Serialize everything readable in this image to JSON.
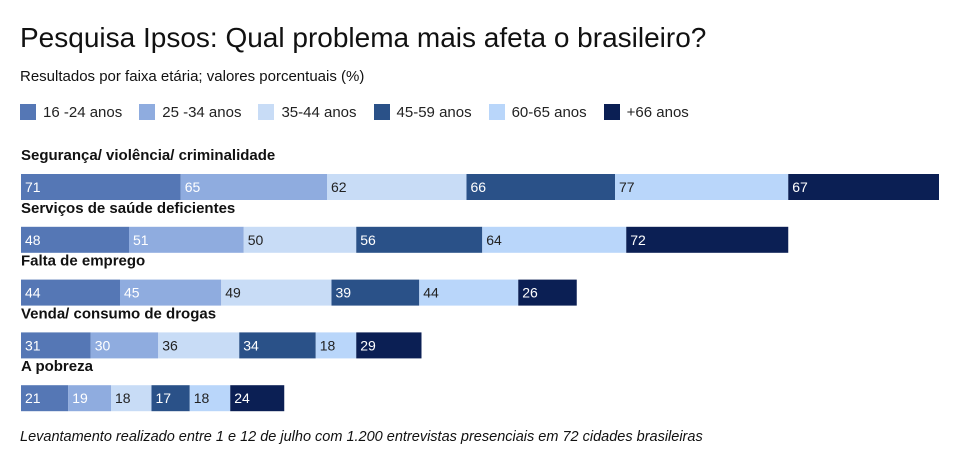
{
  "title": "Pesquisa Ipsos: Qual problema mais afeta o brasileiro?",
  "subtitle": "Resultados por faixa etária; valores porcentuais (%)",
  "footnote": "Levantamento realizado entre 1 e 12 de julho com 1.200 entrevistas presenciais em 72 cidades brasileiras",
  "chart_data": {
    "type": "bar",
    "orientation": "horizontal",
    "stacked": true,
    "title": "Pesquisa Ipsos: Qual problema mais afeta o brasileiro?",
    "subtitle": "Resultados por faixa etária; valores porcentuais (%)",
    "legend_position": "top-left",
    "grid": false,
    "categories": [
      "Segurança/ violência/ criminalidade",
      "Serviços de saúde deficientes",
      "Falta de emprego",
      "Venda/ consumo de drogas",
      "A pobreza"
    ],
    "series": [
      {
        "name": "16 -24 anos",
        "color": "#5577b5",
        "label_color": "#ffffff",
        "values": [
          71,
          48,
          44,
          31,
          21
        ]
      },
      {
        "name": "25 -34 anos",
        "color": "#8facdf",
        "label_color": "#ffffff",
        "values": [
          65,
          51,
          45,
          30,
          19
        ]
      },
      {
        "name": "35-44 anos",
        "color": "#c8dcf6",
        "label_color": "#222222",
        "values": [
          62,
          50,
          49,
          36,
          18
        ]
      },
      {
        "name": "45-59 anos",
        "color": "#2a5188",
        "label_color": "#ffffff",
        "values": [
          66,
          56,
          39,
          34,
          17
        ]
      },
      {
        "name": "60-65 anos",
        "color": "#b9d6fa",
        "label_color": "#222222",
        "values": [
          77,
          64,
          44,
          18,
          18
        ]
      },
      {
        "name": "+66 anos",
        "color": "#0b1f54",
        "label_color": "#ffffff",
        "values": [
          67,
          72,
          26,
          29,
          24
        ]
      }
    ]
  }
}
